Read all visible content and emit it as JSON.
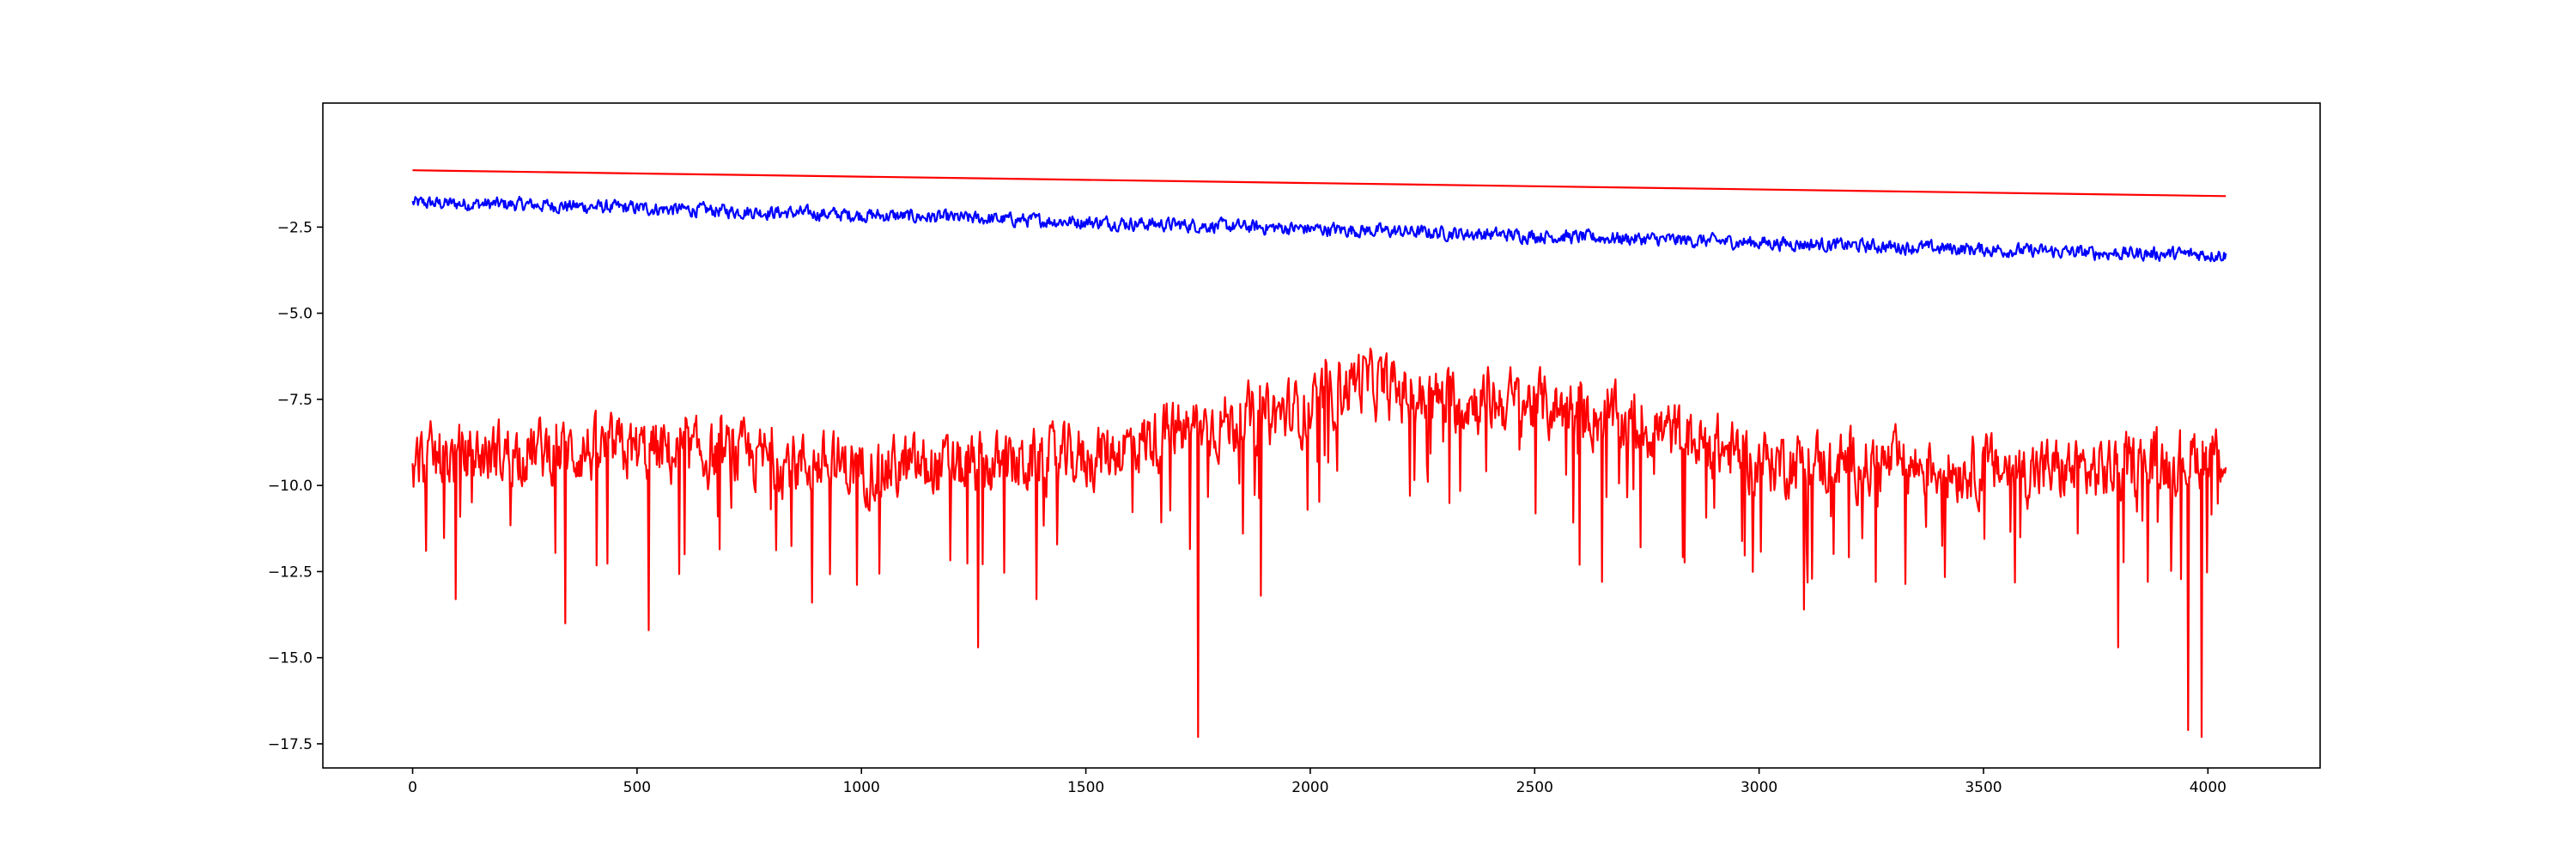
{
  "chart_data": {
    "type": "line",
    "title": "",
    "xlabel": "",
    "ylabel": "",
    "xlim": [
      -200,
      4250
    ],
    "ylim": [
      -18.2,
      1.1
    ],
    "grid": false,
    "legend": "none",
    "x_ticks": [
      {
        "value": 0,
        "label": "0"
      },
      {
        "value": 500,
        "label": "500"
      },
      {
        "value": 1000,
        "label": "1000"
      },
      {
        "value": 1500,
        "label": "1500"
      },
      {
        "value": 2000,
        "label": "2000"
      },
      {
        "value": 2500,
        "label": "2500"
      },
      {
        "value": 3000,
        "label": "3000"
      },
      {
        "value": 3500,
        "label": "3500"
      },
      {
        "value": 4000,
        "label": "4000"
      }
    ],
    "y_ticks": [
      {
        "value": -2.5,
        "label": "−2.5"
      },
      {
        "value": -5.0,
        "label": "−5.0"
      },
      {
        "value": -7.5,
        "label": "−7.5"
      },
      {
        "value": -10.0,
        "label": "−10.0"
      },
      {
        "value": -12.5,
        "label": "−12.5"
      },
      {
        "value": -15.0,
        "label": "−15.0"
      },
      {
        "value": -17.5,
        "label": "−17.5"
      }
    ],
    "series": [
      {
        "color": "#ff0000",
        "style": "straight line",
        "x": [
          0,
          4040
        ],
        "y": [
          -0.85,
          -1.6
        ]
      },
      {
        "color": "#0000ff",
        "style": "noisy trace",
        "x": [
          0,
          250,
          500,
          750,
          1000,
          1250,
          1500,
          1750,
          2000,
          2250,
          2500,
          2750,
          3000,
          3250,
          3500,
          3750,
          4040
        ],
        "y": [
          -1.8,
          -1.85,
          -1.95,
          -2.05,
          -2.15,
          -2.25,
          -2.35,
          -2.45,
          -2.55,
          -2.65,
          -2.75,
          -2.85,
          -2.95,
          -3.05,
          -3.15,
          -3.25,
          -3.3
        ],
        "noise_amplitude": 0.3
      },
      {
        "color": "#ff0000",
        "style": "noisy trace",
        "x": [
          0,
          250,
          500,
          750,
          1000,
          1250,
          1500,
          1750,
          2000,
          2100,
          2250,
          2500,
          2750,
          3000,
          3250,
          3500,
          3750,
          4040
        ],
        "y": [
          -9.3,
          -9.0,
          -9.0,
          -9.2,
          -9.5,
          -9.5,
          -9.2,
          -8.3,
          -7.8,
          -6.9,
          -7.5,
          -7.6,
          -8.3,
          -9.3,
          -9.4,
          -9.5,
          -9.6,
          -9.0
        ],
        "noise_amplitude": 1.4,
        "spikes": [
          {
            "x": 30,
            "y": -11.9
          },
          {
            "x": 95,
            "y": -13.3
          },
          {
            "x": 340,
            "y": -14.0
          },
          {
            "x": 525,
            "y": -14.2
          },
          {
            "x": 890,
            "y": -13.4
          },
          {
            "x": 1260,
            "y": -14.7
          },
          {
            "x": 1390,
            "y": -13.3
          },
          {
            "x": 1750,
            "y": -17.3
          },
          {
            "x": 1890,
            "y": -13.2
          },
          {
            "x": 2600,
            "y": -12.3
          },
          {
            "x": 2650,
            "y": -12.8
          },
          {
            "x": 3100,
            "y": -13.6
          },
          {
            "x": 3260,
            "y": -12.8
          },
          {
            "x": 3800,
            "y": -14.7
          },
          {
            "x": 3955,
            "y": -17.1
          },
          {
            "x": 3985,
            "y": -17.3
          }
        ]
      }
    ]
  }
}
